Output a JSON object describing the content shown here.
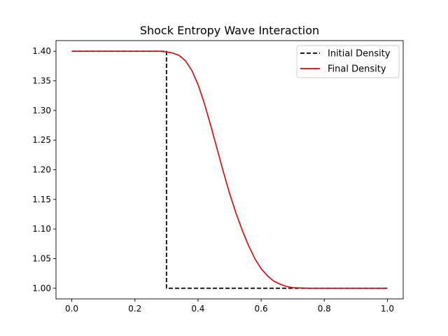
{
  "chart_data": {
    "type": "line",
    "title": "Shock Entropy Wave Interaction",
    "xlabel": "",
    "ylabel": "",
    "xlim": [
      -0.05,
      1.05
    ],
    "ylim": [
      0.982,
      1.418
    ],
    "x_ticks": [
      {
        "value": 0.0,
        "label": "0.0"
      },
      {
        "value": 0.2,
        "label": "0.2"
      },
      {
        "value": 0.4,
        "label": "0.4"
      },
      {
        "value": 0.6,
        "label": "0.6"
      },
      {
        "value": 0.8,
        "label": "0.8"
      },
      {
        "value": 1.0,
        "label": "1.0"
      }
    ],
    "y_ticks": [
      {
        "value": 1.0,
        "label": "1.00"
      },
      {
        "value": 1.05,
        "label": "1.05"
      },
      {
        "value": 1.1,
        "label": "1.10"
      },
      {
        "value": 1.15,
        "label": "1.15"
      },
      {
        "value": 1.2,
        "label": "1.20"
      },
      {
        "value": 1.25,
        "label": "1.25"
      },
      {
        "value": 1.3,
        "label": "1.30"
      },
      {
        "value": 1.35,
        "label": "1.35"
      },
      {
        "value": 1.4,
        "label": "1.40"
      }
    ],
    "grid": false,
    "legend_position": "top-right",
    "series": [
      {
        "name": "Initial Density",
        "color": "#000000",
        "style": "dashed",
        "points": [
          [
            0.0,
            1.4
          ],
          [
            0.3,
            1.4
          ],
          [
            0.3,
            1.0
          ],
          [
            1.0,
            1.0
          ]
        ]
      },
      {
        "name": "Final Density",
        "color": "#e00000",
        "style": "solid",
        "points": [
          [
            0.0,
            1.4
          ],
          [
            0.28,
            1.4
          ],
          [
            0.3,
            1.399
          ],
          [
            0.32,
            1.397
          ],
          [
            0.34,
            1.393
          ],
          [
            0.36,
            1.384
          ],
          [
            0.38,
            1.368
          ],
          [
            0.4,
            1.344
          ],
          [
            0.42,
            1.312
          ],
          [
            0.44,
            1.275
          ],
          [
            0.46,
            1.236
          ],
          [
            0.48,
            1.197
          ],
          [
            0.5,
            1.16
          ],
          [
            0.52,
            1.127
          ],
          [
            0.54,
            1.098
          ],
          [
            0.56,
            1.072
          ],
          [
            0.58,
            1.05
          ],
          [
            0.6,
            1.033
          ],
          [
            0.62,
            1.021
          ],
          [
            0.64,
            1.012
          ],
          [
            0.66,
            1.007
          ],
          [
            0.68,
            1.003
          ],
          [
            0.7,
            1.001
          ],
          [
            0.72,
            1.0005
          ],
          [
            0.75,
            1.0
          ],
          [
            1.0,
            1.0
          ]
        ]
      }
    ]
  }
}
